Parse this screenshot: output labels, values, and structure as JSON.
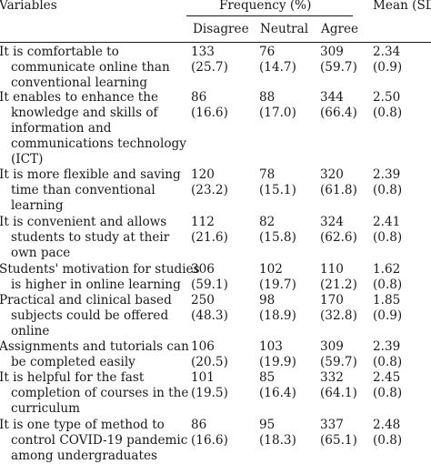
{
  "table": {
    "headers": {
      "variables": "Variables",
      "frequency": "Frequency (%)",
      "mean": "Mean (SD)",
      "disagree": "Disagree",
      "neutral": "Neutral",
      "agree": "Agree"
    },
    "rows": [
      {
        "statement": "It is comfortable to\n   communicate online than\n   conventional learning",
        "disagree": "133\n(25.7)",
        "neutral": "76\n(14.7)",
        "agree": "309\n(59.7)",
        "mean": "2.34\n(0.9)"
      },
      {
        "statement": "It enables to enhance the\n   knowledge and skills of\n   information and\n   communications technology\n   (ICT)",
        "disagree": "86\n(16.6)",
        "neutral": "88\n(17.0)",
        "agree": "344\n(66.4)",
        "mean": "2.50\n(0.8)"
      },
      {
        "statement": "It is more flexible and saving\n   time than conventional\n   learning",
        "disagree": "120\n(23.2)",
        "neutral": "78\n(15.1)",
        "agree": "320\n(61.8)",
        "mean": "2.39\n(0.8)"
      },
      {
        "statement": "It is convenient and allows\n   students to study at their\n   own pace",
        "disagree": "112\n(21.6)",
        "neutral": "82\n(15.8)",
        "agree": "324\n(62.6)",
        "mean": "2.41\n(0.8)"
      },
      {
        "statement": "Students' motivation for studies\n   is higher in online learning",
        "disagree": "306\n(59.1)",
        "neutral": "102\n(19.7)",
        "agree": "110\n(21.2)",
        "mean": "1.62\n(0.8)"
      },
      {
        "statement": "Practical and clinical based\n   subjects could be offered\n   online",
        "disagree": "250\n(48.3)",
        "neutral": "98\n(18.9)",
        "agree": "170\n(32.8)",
        "mean": "1.85\n(0.9)"
      },
      {
        "statement": "Assignments and tutorials can\n   be completed easily",
        "disagree": "106\n(20.5)",
        "neutral": "103\n(19.9)",
        "agree": "309\n(59.7)",
        "mean": "2.39\n(0.8)"
      },
      {
        "statement": "It is helpful for the fast\n   completion of courses in the\n   curriculum",
        "disagree": "101\n(19.5)",
        "neutral": "85\n(16.4)",
        "agree": "332\n(64.1)",
        "mean": "2.45\n(0.8)"
      },
      {
        "statement": "It is one type of method to\n   control COVID-19 pandemic\n   among undergraduates",
        "disagree": "86\n(16.6)",
        "neutral": "95\n(18.3)",
        "agree": "337\n(65.1)",
        "mean": "2.48\n(0.8)"
      }
    ]
  }
}
